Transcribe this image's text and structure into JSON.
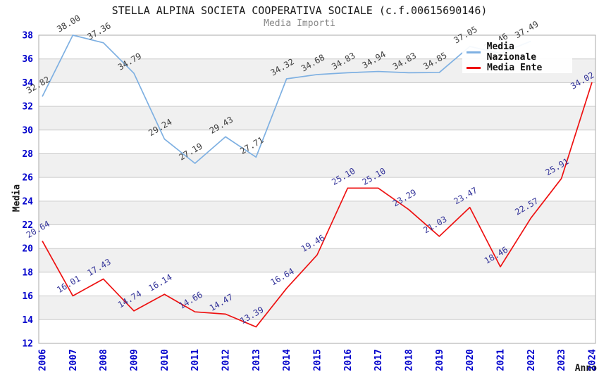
{
  "header": {
    "title": "STELLA ALPINA SOCIETA COOPERATIVA SOCIALE (c.f.00615690146)",
    "subtitle": "Media Importi"
  },
  "chart_data": {
    "type": "line",
    "x": [
      2006,
      2007,
      2008,
      2009,
      2010,
      2011,
      2012,
      2013,
      2014,
      2015,
      2016,
      2017,
      2018,
      2019,
      2020,
      2021,
      2022,
      2023,
      2024
    ],
    "xlabel": "Anno",
    "ylabel": "Media",
    "ylim": [
      12,
      38
    ],
    "ytick_step": 2,
    "grid": true,
    "legend_position": "top-right",
    "series": [
      {
        "name": "Media Nazionale",
        "color": "#7eb0e2",
        "label_color": "#3d3d3d",
        "values": [
          32.82,
          38.0,
          37.36,
          34.79,
          29.24,
          27.19,
          29.43,
          27.71,
          34.32,
          34.68,
          34.83,
          34.94,
          34.83,
          34.85,
          37.05,
          36.46,
          37.49,
          null,
          null
        ]
      },
      {
        "name": "Media Ente",
        "color": "#ee1111",
        "label_color": "#333399",
        "values": [
          20.64,
          16.01,
          17.43,
          14.74,
          16.14,
          14.66,
          14.47,
          13.39,
          16.64,
          19.46,
          25.1,
          25.1,
          23.29,
          21.03,
          23.47,
          18.46,
          22.57,
          25.91,
          34.02
        ]
      }
    ],
    "style": {
      "tick_label_color": "#0000cc",
      "band_color": "#f0f0f0",
      "grid_color": "#cccccc",
      "axis_color": "#aaaaaa"
    }
  }
}
